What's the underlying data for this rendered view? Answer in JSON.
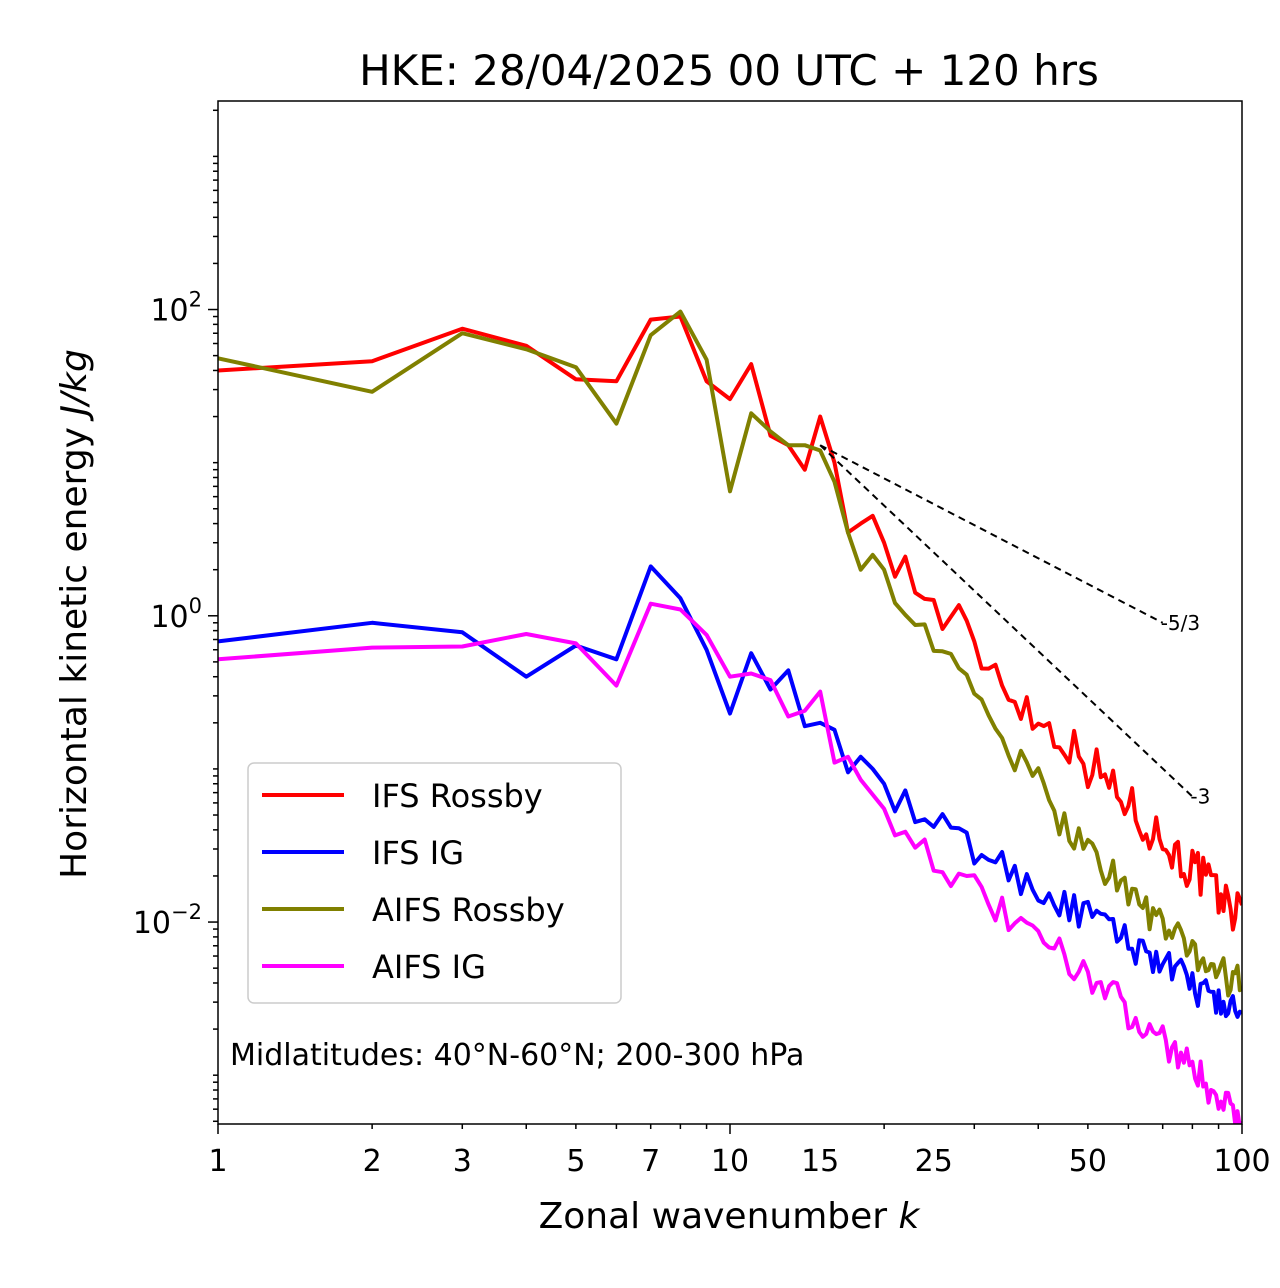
{
  "chart_data": {
    "type": "line",
    "title": "HKE: 28/04/2025 00 UTC + 120 hrs",
    "xlabel": "Zonal wavenumber",
    "xlabel_var": "k",
    "ylabel": "Horizontal kinetic energy",
    "ylabel_unit": "J/kg",
    "x_scale": "log",
    "y_scale": "log",
    "xlim": [
      1,
      100
    ],
    "ylim": [
      0.00048,
      2300
    ],
    "x_ticks": [
      1,
      2,
      3,
      5,
      7,
      10,
      15,
      25,
      50,
      100
    ],
    "x_tick_labels": [
      "1",
      "2",
      "3",
      "5",
      "7",
      "10",
      "15",
      "25",
      "50",
      "100"
    ],
    "y_ticks": [
      0.01,
      1,
      100
    ],
    "y_tick_labels": [
      {
        "base": "10",
        "exp": "−2"
      },
      {
        "base": "10",
        "exp": "0"
      },
      {
        "base": "10",
        "exp": "2"
      }
    ],
    "legend_position": "lower-left",
    "annotation": "Midlatitudes: 40°N-60°N; 200-300 hPa",
    "grid": false,
    "series": [
      {
        "name": "IFS Rossby",
        "color": "#ff0000",
        "anchors": [
          [
            1,
            40
          ],
          [
            2,
            46
          ],
          [
            3,
            75
          ],
          [
            4,
            58
          ],
          [
            5,
            35
          ],
          [
            6,
            34
          ],
          [
            7,
            86
          ],
          [
            8,
            90
          ],
          [
            9,
            34
          ],
          [
            10,
            26
          ],
          [
            11,
            44
          ],
          [
            12,
            15
          ],
          [
            13,
            13
          ],
          [
            14,
            9
          ],
          [
            15,
            20
          ],
          [
            16,
            10
          ],
          [
            17,
            3.5
          ],
          [
            18,
            4
          ],
          [
            19,
            4.5
          ],
          [
            20,
            3
          ],
          [
            22,
            2
          ],
          [
            24,
            1.3
          ],
          [
            26,
            1
          ],
          [
            28,
            0.9
          ],
          [
            30,
            0.6
          ],
          [
            33,
            0.45
          ],
          [
            36,
            0.3
          ],
          [
            40,
            0.2
          ],
          [
            45,
            0.16
          ],
          [
            50,
            0.11
          ],
          [
            55,
            0.08
          ],
          [
            60,
            0.06
          ],
          [
            65,
            0.045
          ],
          [
            70,
            0.034
          ],
          [
            75,
            0.027
          ],
          [
            80,
            0.022
          ],
          [
            85,
            0.018
          ],
          [
            90,
            0.015
          ],
          [
            95,
            0.013
          ],
          [
            100,
            0.011
          ]
        ],
        "tail_noise": 0.38
      },
      {
        "name": "IFS IG",
        "color": "#0000ff",
        "anchors": [
          [
            1,
            0.68
          ],
          [
            2,
            0.9
          ],
          [
            3,
            0.78
          ],
          [
            4,
            0.4
          ],
          [
            5,
            0.64
          ],
          [
            6,
            0.52
          ],
          [
            7,
            2.1
          ],
          [
            8,
            1.3
          ],
          [
            9,
            0.6
          ],
          [
            10,
            0.23
          ],
          [
            11,
            0.57
          ],
          [
            12,
            0.33
          ],
          [
            13,
            0.44
          ],
          [
            14,
            0.19
          ],
          [
            15,
            0.2
          ],
          [
            16,
            0.18
          ],
          [
            17,
            0.095
          ],
          [
            18,
            0.12
          ],
          [
            19,
            0.1
          ],
          [
            20,
            0.08
          ],
          [
            22,
            0.055
          ],
          [
            24,
            0.045
          ],
          [
            26,
            0.04
          ],
          [
            28,
            0.035
          ],
          [
            30,
            0.03
          ],
          [
            33,
            0.025
          ],
          [
            36,
            0.02
          ],
          [
            40,
            0.016
          ],
          [
            45,
            0.013
          ],
          [
            50,
            0.011
          ],
          [
            55,
            0.009
          ],
          [
            60,
            0.0075
          ],
          [
            65,
            0.0063
          ],
          [
            70,
            0.0053
          ],
          [
            75,
            0.0045
          ],
          [
            80,
            0.0039
          ],
          [
            85,
            0.0034
          ],
          [
            90,
            0.003
          ],
          [
            95,
            0.0027
          ],
          [
            100,
            0.0024
          ]
        ],
        "tail_noise": 0.28
      },
      {
        "name": "AIFS Rossby",
        "color": "#808000",
        "anchors": [
          [
            1,
            48
          ],
          [
            2,
            29
          ],
          [
            3,
            70
          ],
          [
            4,
            55
          ],
          [
            5,
            42
          ],
          [
            6,
            18
          ],
          [
            7,
            68
          ],
          [
            8,
            97
          ],
          [
            9,
            47
          ],
          [
            10,
            6.5
          ],
          [
            11,
            21
          ],
          [
            12,
            16
          ],
          [
            13,
            13
          ],
          [
            14,
            13
          ],
          [
            15,
            12
          ],
          [
            16,
            7.5
          ],
          [
            17,
            3.5
          ],
          [
            18,
            2
          ],
          [
            19,
            2.5
          ],
          [
            20,
            2
          ],
          [
            22,
            1.2
          ],
          [
            24,
            0.8
          ],
          [
            26,
            0.55
          ],
          [
            28,
            0.4
          ],
          [
            30,
            0.3
          ],
          [
            33,
            0.2
          ],
          [
            36,
            0.12
          ],
          [
            40,
            0.075
          ],
          [
            45,
            0.045
          ],
          [
            50,
            0.03
          ],
          [
            55,
            0.022
          ],
          [
            60,
            0.016
          ],
          [
            65,
            0.012
          ],
          [
            70,
            0.0095
          ],
          [
            75,
            0.0078
          ],
          [
            80,
            0.0065
          ],
          [
            85,
            0.0055
          ],
          [
            90,
            0.0048
          ],
          [
            95,
            0.0042
          ],
          [
            100,
            0.0037
          ]
        ],
        "tail_noise": 0.3
      },
      {
        "name": "AIFS IG",
        "color": "#ff00ff",
        "anchors": [
          [
            1,
            0.52
          ],
          [
            2,
            0.62
          ],
          [
            3,
            0.63
          ],
          [
            4,
            0.76
          ],
          [
            5,
            0.66
          ],
          [
            6,
            0.35
          ],
          [
            7,
            1.2
          ],
          [
            8,
            1.1
          ],
          [
            9,
            0.75
          ],
          [
            10,
            0.4
          ],
          [
            11,
            0.42
          ],
          [
            12,
            0.38
          ],
          [
            13,
            0.22
          ],
          [
            14,
            0.24
          ],
          [
            15,
            0.32
          ],
          [
            16,
            0.11
          ],
          [
            17,
            0.12
          ],
          [
            18,
            0.085
          ],
          [
            19,
            0.068
          ],
          [
            20,
            0.055
          ],
          [
            22,
            0.04
          ],
          [
            24,
            0.03
          ],
          [
            26,
            0.024
          ],
          [
            28,
            0.019
          ],
          [
            30,
            0.015
          ],
          [
            33,
            0.012
          ],
          [
            36,
            0.0095
          ],
          [
            40,
            0.0075
          ],
          [
            45,
            0.0058
          ],
          [
            50,
            0.0045
          ],
          [
            55,
            0.0035
          ],
          [
            60,
            0.0027
          ],
          [
            65,
            0.0021
          ],
          [
            70,
            0.0017
          ],
          [
            75,
            0.0014
          ],
          [
            80,
            0.0011
          ],
          [
            85,
            0.0009
          ],
          [
            90,
            0.00075
          ],
          [
            95,
            0.00063
          ],
          [
            100,
            0.00053
          ]
        ],
        "tail_noise": 0.3
      }
    ],
    "reference_lines": [
      {
        "label": "-5/3",
        "x": [
          15,
          70
        ],
        "y": [
          13,
          0.9
        ]
      },
      {
        "label": "-3",
        "x": [
          15,
          80
        ],
        "y": [
          13,
          0.066
        ]
      }
    ]
  }
}
